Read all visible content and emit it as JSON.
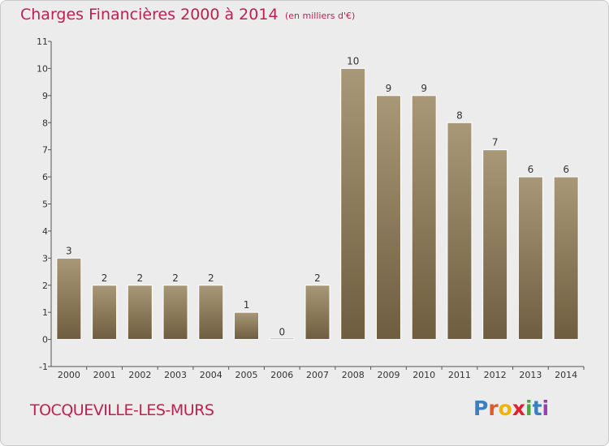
{
  "header": {
    "title": "Charges Financières 2000 à 2014",
    "unit": "(en milliers d'€)"
  },
  "footer": {
    "commune": "TOCQUEVILLE-LES-MURS",
    "brand_letters": [
      "P",
      "r",
      "o",
      "x",
      "i",
      "t",
      "i"
    ]
  },
  "colors": {
    "title": "#c02050",
    "bar_top": "#a89878",
    "bar_bottom": "#6e5d3e",
    "brand": [
      "#3a7fc2",
      "#e05a2a",
      "#f2b400",
      "#e02030",
      "#4aa83a",
      "#3a7fc2",
      "#9a3fb0"
    ]
  },
  "chart_data": {
    "type": "bar",
    "title": "Charges Financières 2000 à 2014",
    "subtitle": "(en milliers d'€)",
    "xlabel": "",
    "ylabel": "",
    "categories": [
      "2000",
      "2001",
      "2002",
      "2003",
      "2004",
      "2005",
      "2006",
      "2007",
      "2008",
      "2009",
      "2010",
      "2011",
      "2012",
      "2013",
      "2014"
    ],
    "values": [
      3,
      2,
      2,
      2,
      2,
      1,
      0,
      2,
      10,
      9,
      9,
      8,
      7,
      6,
      6
    ],
    "ylim": [
      -1,
      11
    ],
    "yticks": [
      "-1",
      "0",
      "1",
      "2",
      "3",
      "4",
      "5",
      "6",
      "7",
      "8",
      "9",
      "10",
      "11"
    ],
    "grid": false
  }
}
